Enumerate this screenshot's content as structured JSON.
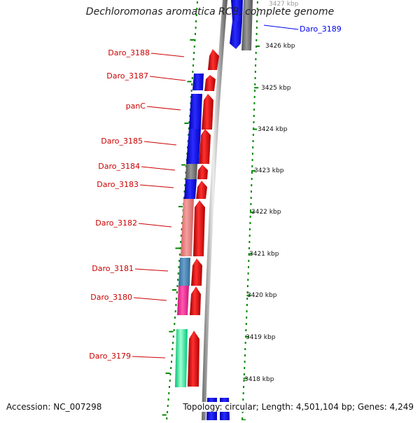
{
  "title": "Dechloromonas aromatica RCB, complete genome",
  "footer": {
    "accession": "Accession: NC_007298",
    "topology": "Topology: circular; Length: 4,501,104 bp; Genes: 4,249"
  },
  "kbp_ticks": [
    "3427 kbp",
    "3426 kbp",
    "3425 kbp",
    "3424 kbp",
    "3423 kbp",
    "3422 kbp",
    "3421 kbp",
    "3420 kbp",
    "3419 kbp",
    "3418 kbp"
  ],
  "genes": [
    {
      "name": "Daro_3189",
      "color": "#0000ee"
    },
    {
      "name": "Daro_3188",
      "color": "#cc0000"
    },
    {
      "name": "Daro_3187",
      "color": "#cc0000"
    },
    {
      "name": "panC",
      "color": "#cc0000"
    },
    {
      "name": "Daro_3185",
      "color": "#cc0000"
    },
    {
      "name": "Daro_3184",
      "color": "#cc0000"
    },
    {
      "name": "Daro_3183",
      "color": "#cc0000"
    },
    {
      "name": "Daro_3182",
      "color": "#cc0000"
    },
    {
      "name": "Daro_3181",
      "color": "#cc0000"
    },
    {
      "name": "Daro_3180",
      "color": "#cc0000"
    },
    {
      "name": "Daro_3179",
      "color": "#cc0000"
    }
  ],
  "colors": {
    "forward_strand": "#ff0000",
    "reverse_strand": "#0000ff",
    "backbone": "#888888",
    "dots": "#008800",
    "cog_blue": "#0000ff",
    "cog_gray": "#777777",
    "cog_pink": "#f07a7a",
    "cog_steel": "#4682b4",
    "cog_magenta": "#ff1493",
    "cog_green": "#00e68a"
  }
}
